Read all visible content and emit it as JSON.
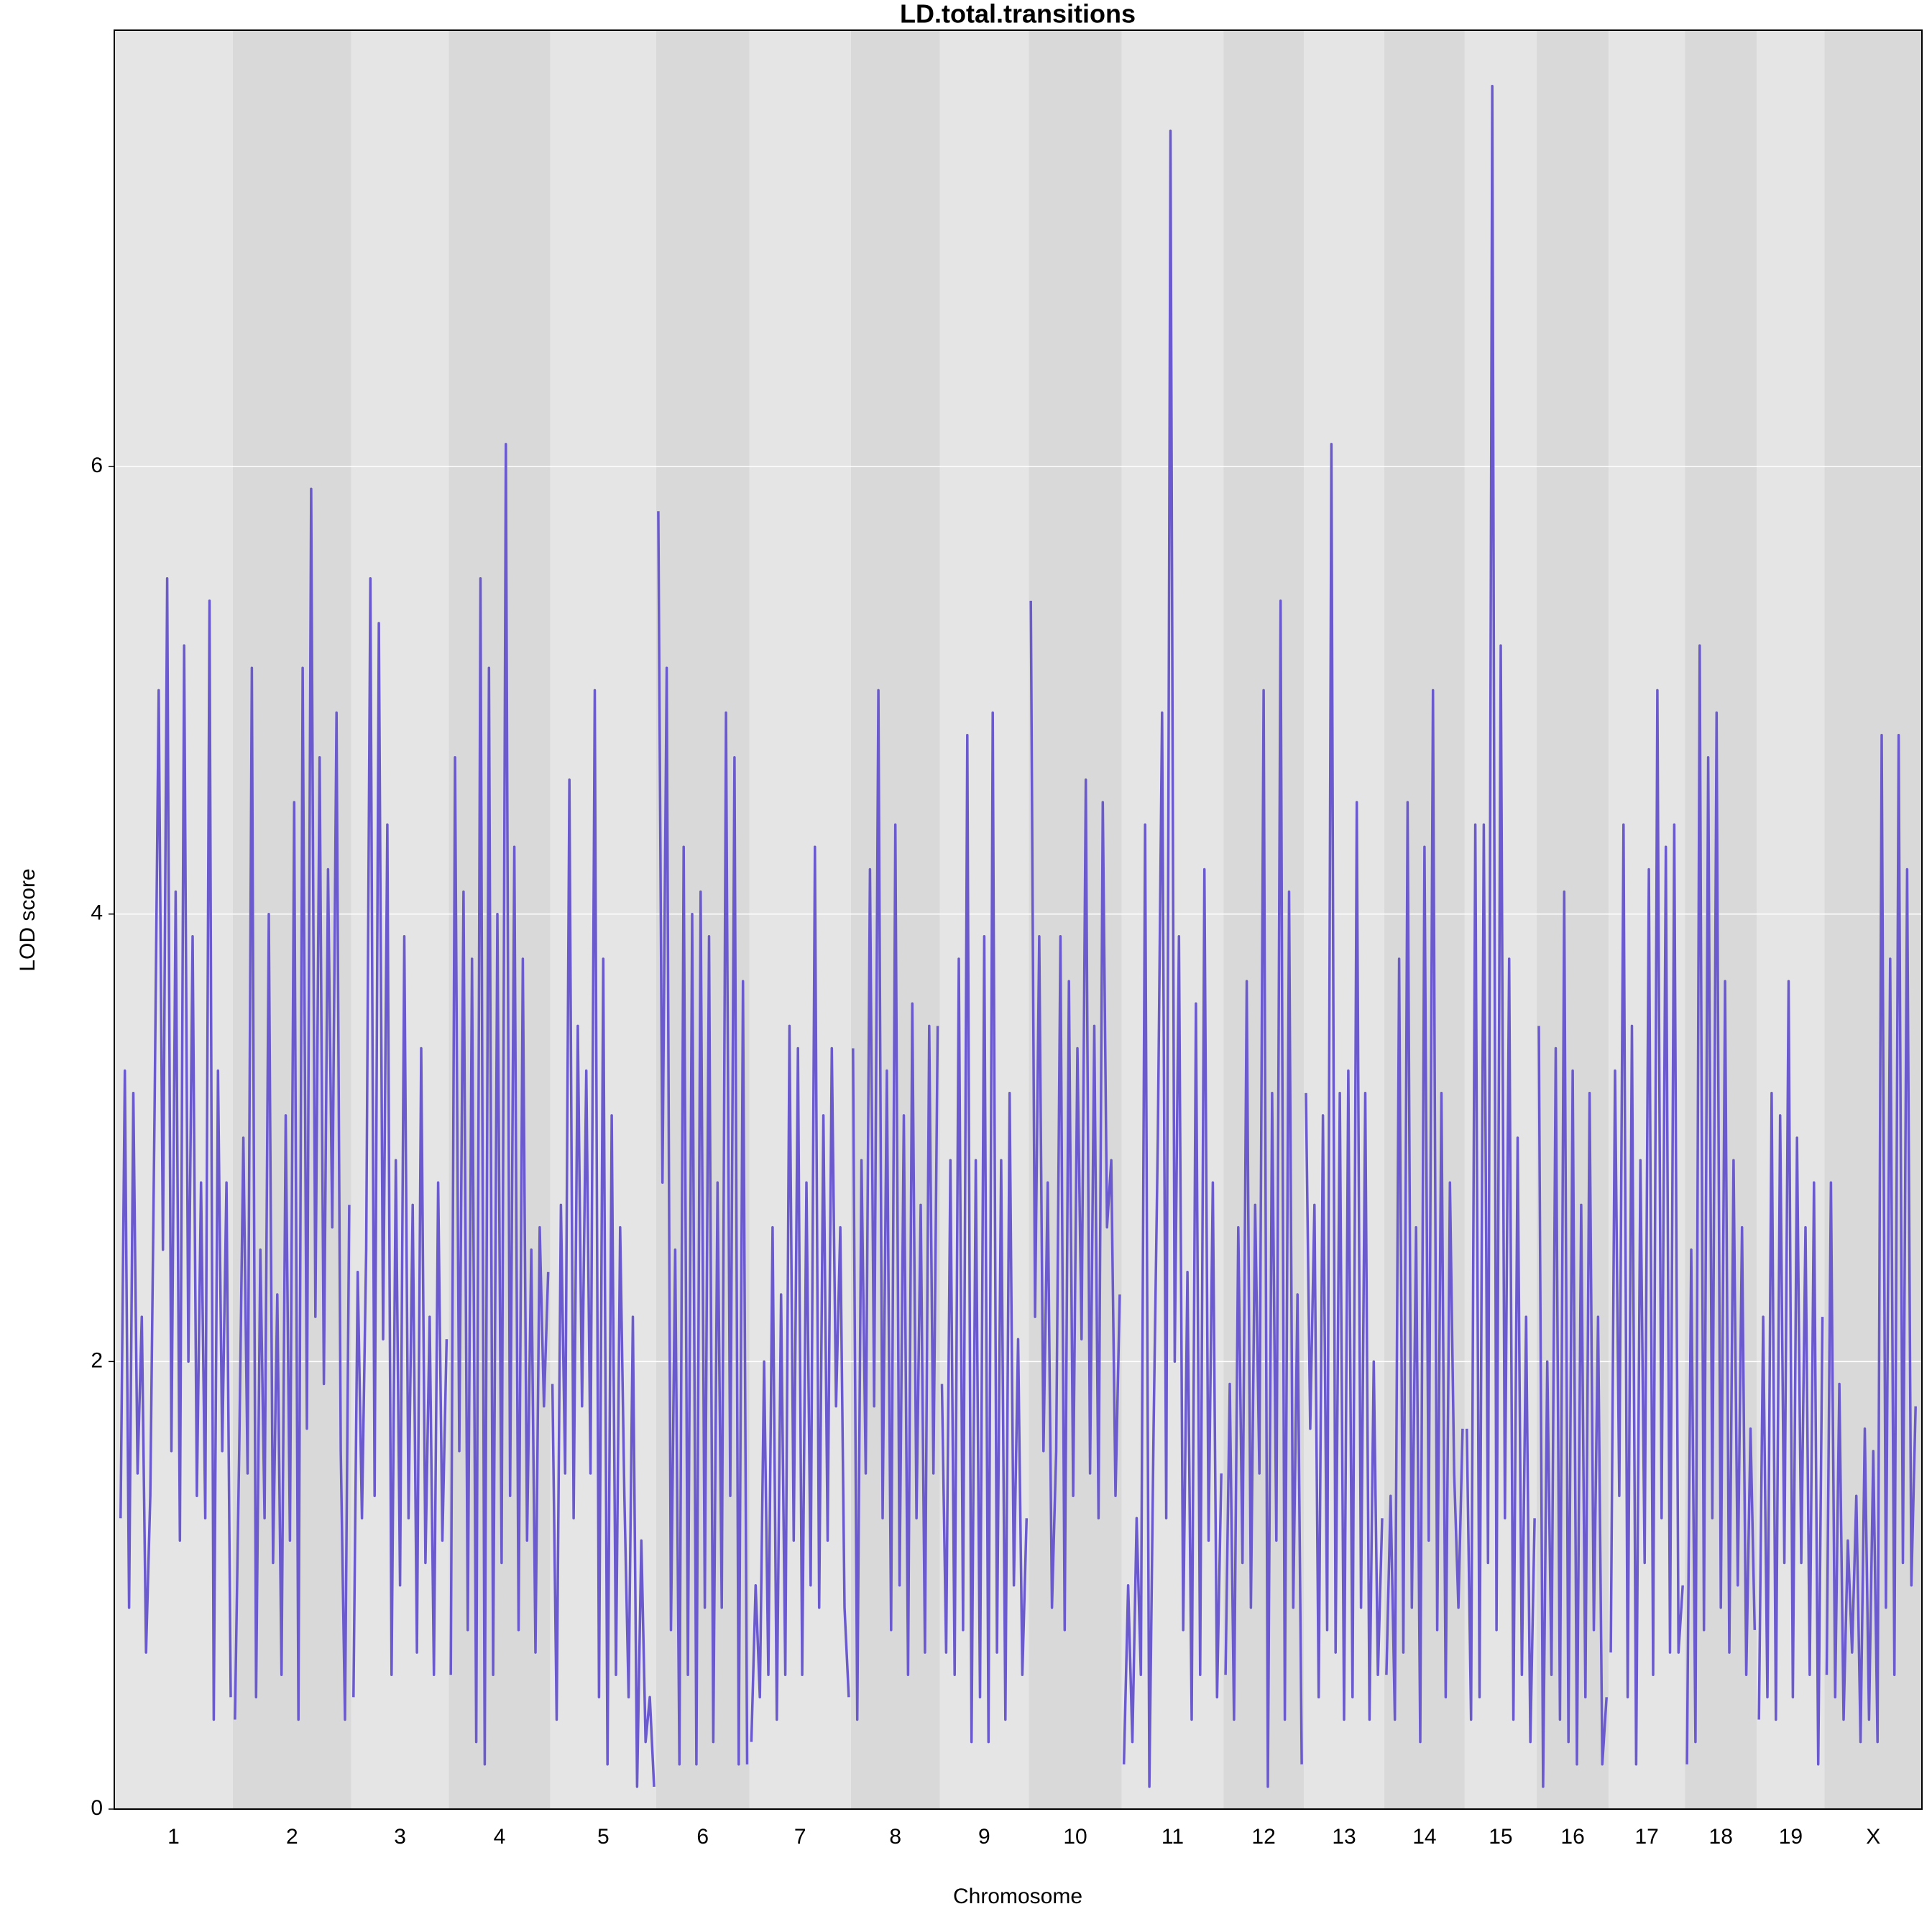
{
  "chart_data": {
    "type": "line",
    "title": "LD.total.transitions",
    "xlabel": "Chromosome",
    "ylabel": "LOD score",
    "ylim": [
      0,
      7.95
    ],
    "yticks": [
      0,
      2,
      4,
      6
    ],
    "grid": true,
    "color": "#6a5acd",
    "band_colors": [
      "#e5e5e5",
      "#d9d9d9"
    ],
    "chromosomes": [
      {
        "name": "1",
        "values": [
          1.3,
          3.3,
          0.9,
          3.2,
          1.5,
          2.2,
          0.7,
          1.4,
          3.1,
          5.0,
          2.5,
          5.5,
          1.6,
          4.1,
          1.2,
          5.2,
          2.0,
          3.9,
          1.4,
          2.8,
          1.3,
          5.4,
          0.4,
          3.3,
          1.6,
          2.8,
          0.5
        ]
      },
      {
        "name": "2",
        "values": [
          0.4,
          1.6,
          3.0,
          1.5,
          5.1,
          0.5,
          2.5,
          1.3,
          4.0,
          1.1,
          2.3,
          0.6,
          3.1,
          1.2,
          4.5,
          0.4,
          5.1,
          1.7,
          5.9,
          2.2,
          4.7,
          1.9,
          4.2,
          2.6,
          4.9,
          1.6,
          0.4,
          2.7
        ]
      },
      {
        "name": "3",
        "values": [
          0.5,
          2.4,
          1.3,
          2.5,
          5.5,
          1.4,
          5.3,
          2.1,
          4.4,
          0.6,
          2.9,
          1.0,
          3.9,
          1.3,
          2.7,
          0.7,
          3.4,
          1.1,
          2.2,
          0.6,
          2.8,
          1.2,
          2.1
        ]
      },
      {
        "name": "4",
        "values": [
          0.6,
          4.7,
          1.6,
          4.1,
          0.8,
          3.8,
          0.3,
          5.5,
          0.2,
          5.1,
          0.6,
          4.0,
          1.1,
          6.1,
          1.4,
          4.3,
          0.8,
          3.8,
          1.2,
          2.5,
          0.7,
          2.6,
          1.8,
          2.4
        ]
      },
      {
        "name": "5",
        "values": [
          1.9,
          0.4,
          2.7,
          1.5,
          4.6,
          1.3,
          3.5,
          1.8,
          3.3,
          1.5,
          5.0,
          0.5,
          3.8,
          0.2,
          3.1,
          0.6,
          2.6,
          1.4,
          0.5,
          2.2,
          0.1,
          1.2,
          0.3,
          0.5,
          0.1
        ]
      },
      {
        "name": "6",
        "values": [
          5.8,
          2.8,
          5.1,
          0.8,
          2.5,
          0.2,
          4.3,
          0.6,
          4.0,
          0.2,
          4.1,
          0.9,
          3.9,
          0.3,
          2.8,
          0.9,
          4.9,
          1.4,
          4.7,
          0.2,
          3.7,
          0.2
        ]
      },
      {
        "name": "7",
        "values": [
          0.3,
          1.0,
          0.5,
          2.0,
          0.6,
          2.6,
          0.4,
          2.3,
          0.6,
          3.5,
          1.2,
          3.4,
          0.6,
          2.8,
          1.0,
          4.3,
          0.9,
          3.1,
          1.2,
          3.4,
          1.8,
          2.6,
          0.9,
          0.5
        ]
      },
      {
        "name": "8",
        "values": [
          3.4,
          0.4,
          2.9,
          1.5,
          4.2,
          1.8,
          5.0,
          1.3,
          3.3,
          0.8,
          4.4,
          1.0,
          3.1,
          0.6,
          3.6,
          1.3,
          2.7,
          0.7,
          3.5,
          1.5,
          3.5
        ]
      },
      {
        "name": "9",
        "values": [
          1.9,
          0.7,
          2.9,
          0.6,
          3.8,
          0.8,
          4.8,
          0.3,
          2.9,
          0.5,
          3.9,
          0.3,
          4.9,
          0.7,
          2.9,
          0.4,
          3.2,
          1.0,
          2.1,
          0.6,
          1.3
        ]
      },
      {
        "name": "10",
        "values": [
          5.4,
          2.2,
          3.9,
          1.6,
          2.8,
          0.9,
          1.6,
          3.9,
          0.8,
          3.7,
          1.4,
          3.4,
          2.1,
          4.6,
          1.5,
          3.5,
          1.3,
          4.5,
          2.6,
          2.9,
          1.4,
          2.3
        ]
      },
      {
        "name": "11",
        "values": [
          0.2,
          1.0,
          0.3,
          1.3,
          0.6,
          4.4,
          0.1,
          1.7,
          3.0,
          4.9,
          1.3,
          7.5,
          2.0,
          3.9,
          0.8,
          2.4,
          0.4,
          3.6,
          0.6,
          4.2,
          1.2,
          2.8,
          0.5,
          1.5
        ]
      },
      {
        "name": "12",
        "values": [
          0.6,
          1.9,
          0.4,
          2.6,
          1.1,
          3.7,
          0.9,
          2.7,
          1.5,
          5.0,
          0.1,
          3.2,
          1.2,
          5.4,
          0.4,
          4.1,
          0.9,
          2.3,
          0.2
        ]
      },
      {
        "name": "13",
        "values": [
          3.2,
          1.7,
          2.7,
          0.5,
          3.1,
          0.8,
          6.1,
          0.7,
          3.2,
          0.4,
          3.3,
          0.5,
          4.5,
          0.9,
          3.2,
          0.4,
          2.0,
          0.6,
          1.3
        ]
      },
      {
        "name": "14",
        "values": [
          0.6,
          1.4,
          0.4,
          3.8,
          0.7,
          4.5,
          0.9,
          2.6,
          0.3,
          4.3,
          1.2,
          5.0,
          0.8,
          3.2,
          0.5,
          2.8,
          1.5,
          0.9,
          1.7
        ]
      },
      {
        "name": "15",
        "values": [
          1.7,
          0.4,
          4.4,
          0.5,
          4.4,
          1.1,
          7.7,
          0.8,
          5.2,
          1.3,
          3.8,
          0.4,
          3.0,
          0.6,
          2.2,
          0.3,
          1.3
        ]
      },
      {
        "name": "16",
        "values": [
          3.5,
          0.1,
          2.0,
          0.6,
          3.4,
          0.4,
          4.1,
          0.3,
          3.3,
          0.2,
          2.7,
          0.5,
          3.2,
          0.8,
          2.2,
          0.2,
          0.5
        ]
      },
      {
        "name": "17",
        "values": [
          0.7,
          3.3,
          1.4,
          4.4,
          0.5,
          3.5,
          0.2,
          2.9,
          1.1,
          4.2,
          0.6,
          5.0,
          1.3,
          4.3,
          0.7,
          4.4,
          0.7,
          1.0
        ]
      },
      {
        "name": "18",
        "values": [
          0.2,
          2.5,
          0.3,
          5.2,
          0.8,
          4.7,
          1.3,
          4.9,
          0.9,
          3.7,
          0.7,
          2.9,
          1.0,
          2.6,
          0.6,
          1.7,
          0.8
        ]
      },
      {
        "name": "19",
        "values": [
          0.4,
          2.2,
          0.5,
          3.2,
          0.4,
          3.1,
          1.1,
          3.7,
          0.5,
          3.0,
          1.1,
          2.6,
          0.6,
          2.8,
          0.2,
          2.2
        ]
      },
      {
        "name": "X",
        "values": [
          0.6,
          2.8,
          0.5,
          1.9,
          0.4,
          1.2,
          0.7,
          1.4,
          0.3,
          1.7,
          0.4,
          1.6,
          0.3,
          4.8,
          0.9,
          3.8,
          0.6,
          4.8,
          1.1,
          4.2,
          1.0,
          1.8
        ]
      }
    ]
  }
}
